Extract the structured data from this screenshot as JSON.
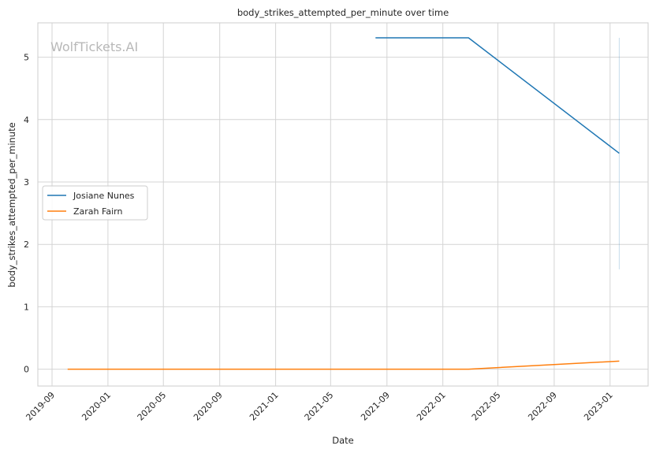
{
  "chart_data": {
    "type": "line",
    "title": "body_strikes_attempted_per_minute over time",
    "xlabel": "Date",
    "ylabel": "body_strikes_attempted_per_minute",
    "watermark": "WolfTickets.AI",
    "xlim": [
      "2019-08-01",
      "2023-03-25"
    ],
    "ylim": [
      -0.27,
      5.55
    ],
    "x_ticks": [
      "2019-09",
      "2020-01",
      "2020-05",
      "2020-09",
      "2021-01",
      "2021-05",
      "2021-09",
      "2022-01",
      "2022-05",
      "2022-09",
      "2023-01"
    ],
    "y_ticks": [
      0,
      1,
      2,
      3,
      4,
      5
    ],
    "grid": true,
    "legend_position": "center-left",
    "series": [
      {
        "name": "Josiane Nunes",
        "color": "#1f77b4",
        "x": [
          "2021-08-07",
          "2022-02-26",
          "2023-01-21"
        ],
        "y": [
          5.31,
          5.31,
          3.46
        ]
      },
      {
        "name": "Zarah Fairn",
        "color": "#ff7f0e",
        "x": [
          "2019-10-05",
          "2022-02-26",
          "2023-01-21"
        ],
        "y": [
          0.0,
          0.0,
          0.13
        ]
      }
    ],
    "band": {
      "x": "2023-01-21",
      "y_low": 1.6,
      "y_high": 5.31,
      "color": "#1f77b4"
    }
  }
}
